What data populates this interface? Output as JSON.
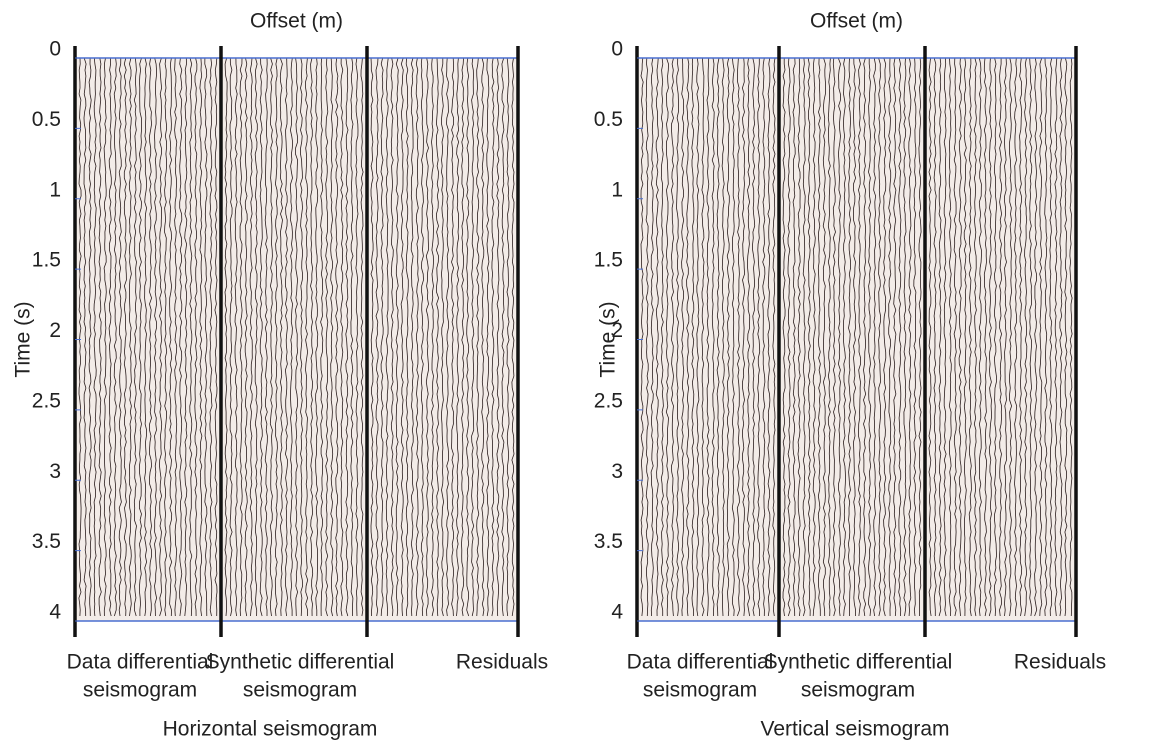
{
  "chart_data": [
    {
      "type": "seismogram",
      "title": "Horizontal seismogram",
      "xlabel": "Offset (m)",
      "ylabel": "Time (s)",
      "sections": [
        [
          "Data differential",
          "seismogram"
        ],
        [
          "Synthetic differential",
          "seismogram"
        ],
        [
          "Residuals"
        ]
      ],
      "ylim": [
        0,
        4
      ],
      "yticks": [
        0,
        0.5,
        1,
        1.5,
        2,
        2.5,
        3,
        3.5,
        4
      ],
      "y_inverted": true
    },
    {
      "type": "seismogram",
      "title": "Vertical seismogram",
      "xlabel": "Offset (m)",
      "ylabel": "Time (s)",
      "sections": [
        [
          "Data differential",
          "seismogram"
        ],
        [
          "Synthetic differential",
          "seismogram"
        ],
        [
          "Residuals"
        ]
      ],
      "ylim": [
        0,
        4
      ],
      "yticks": [
        0,
        0.5,
        1,
        1.5,
        2,
        2.5,
        3,
        3.5,
        4
      ],
      "y_inverted": true
    }
  ]
}
